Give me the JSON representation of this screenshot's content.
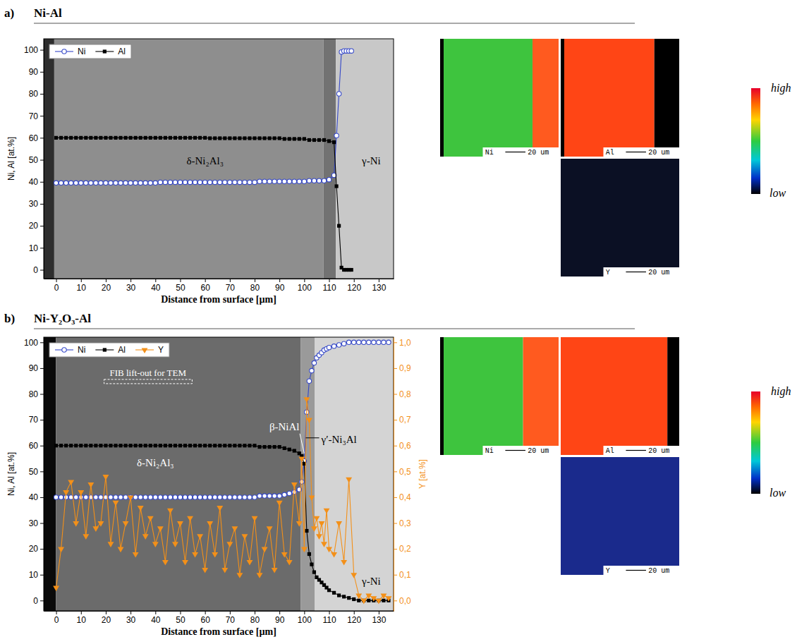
{
  "chart_data": [
    {
      "type": "line",
      "panel_label": "a)",
      "title": "Ni-Al",
      "xlabel": "Distance from surface [µm]",
      "ylabel": "Ni, Al [at.%]",
      "xlim": [
        -5,
        136
      ],
      "ylim": [
        -4,
        105
      ],
      "xticks": [
        0,
        10,
        20,
        30,
        40,
        50,
        60,
        70,
        80,
        90,
        100,
        110,
        120,
        130
      ],
      "yticks": [
        0,
        10,
        20,
        30,
        40,
        50,
        60,
        70,
        80,
        90,
        100
      ],
      "legend": "top-left",
      "x": [
        0,
        2,
        4,
        6,
        8,
        10,
        12,
        14,
        16,
        18,
        20,
        22,
        24,
        26,
        28,
        30,
        32,
        34,
        36,
        38,
        40,
        42,
        44,
        46,
        48,
        50,
        52,
        54,
        56,
        58,
        60,
        62,
        64,
        66,
        68,
        70,
        72,
        74,
        76,
        78,
        80,
        82,
        84,
        86,
        88,
        90,
        92,
        94,
        96,
        98,
        100,
        102,
        104,
        106,
        108,
        110,
        112,
        113,
        114,
        115,
        116,
        117,
        118,
        119
      ],
      "series": [
        {
          "name": "Ni",
          "color": "#3548c8",
          "marker": "circle",
          "values": [
            39.5,
            39.5,
            39.5,
            39.5,
            39.5,
            39.5,
            39.5,
            39.5,
            39.5,
            39.5,
            39.5,
            39.5,
            39.5,
            39.5,
            39.5,
            39.5,
            39.5,
            39.5,
            39.5,
            39.5,
            39.5,
            39.8,
            39.8,
            39.8,
            39.8,
            39.8,
            39.8,
            39.8,
            39.8,
            39.8,
            39.8,
            39.8,
            39.8,
            39.8,
            39.8,
            39.8,
            39.8,
            39.8,
            39.8,
            39.8,
            39.8,
            40.2,
            40.2,
            40.2,
            40.2,
            40.2,
            40.2,
            40.2,
            40.2,
            40.2,
            40.2,
            40.5,
            40.5,
            40.5,
            40.5,
            41,
            43,
            61,
            80,
            99,
            99.5,
            99.5,
            99.5,
            99.5
          ]
        },
        {
          "name": "Al",
          "color": "#000000",
          "marker": "square",
          "values": [
            60,
            60,
            60,
            60,
            60,
            60,
            60,
            60,
            60,
            60,
            60,
            60,
            60,
            60,
            60,
            60,
            60,
            60,
            60,
            60,
            60,
            60,
            60,
            60,
            60,
            60,
            60,
            60,
            60,
            60,
            60,
            59.8,
            59.8,
            59.8,
            59.8,
            59.8,
            59.8,
            59.8,
            59.8,
            59.8,
            59.8,
            59.8,
            59.8,
            59.8,
            59.8,
            59.8,
            59.5,
            59.5,
            59.5,
            59.5,
            59.5,
            59,
            59,
            59,
            59,
            58.5,
            58,
            38,
            20,
            1,
            0,
            0,
            0,
            0
          ]
        }
      ],
      "annotations": [
        {
          "text": "δ-Ni₂Al₃",
          "x": 60,
          "y": 48,
          "color": "#000000"
        },
        {
          "text": "γ-Ni",
          "x": 127,
          "y": 48,
          "color": "#000000"
        }
      ],
      "maps": [
        {
          "element": "Ni",
          "scale_bar": "20 um"
        },
        {
          "element": "Al",
          "scale_bar": "20 um"
        },
        {
          "element": "Y",
          "scale_bar": "20 um"
        }
      ],
      "color_scale": {
        "high": "high",
        "low": "low"
      }
    },
    {
      "type": "line",
      "panel_label": "b)",
      "title": "Ni-Y₂O₃-Al",
      "xlabel": "Distance from surface [µm]",
      "ylabel": "Ni, Al [at.%]",
      "y2label": "Y [at.%]",
      "xlim": [
        -5,
        136
      ],
      "ylim": [
        -4,
        102
      ],
      "y2lim": [
        -0.04,
        1.02
      ],
      "xticks": [
        0,
        10,
        20,
        30,
        40,
        50,
        60,
        70,
        80,
        90,
        100,
        110,
        120,
        130
      ],
      "yticks": [
        0,
        10,
        20,
        30,
        40,
        50,
        60,
        70,
        80,
        90,
        100
      ],
      "y2ticks": [
        {
          "value": 0,
          "label": "0,0"
        },
        {
          "value": 0.1,
          "label": "0,1"
        },
        {
          "value": 0.2,
          "label": "0,2"
        },
        {
          "value": 0.3,
          "label": "0,3"
        },
        {
          "value": 0.4,
          "label": "0,4"
        },
        {
          "value": 0.5,
          "label": "0,5"
        },
        {
          "value": 0.6,
          "label": "0,6"
        },
        {
          "value": 0.7,
          "label": "0,7"
        },
        {
          "value": 0.8,
          "label": "0,8"
        },
        {
          "value": 0.9,
          "label": "0,9"
        },
        {
          "value": 1,
          "label": "1,0"
        }
      ],
      "legend": "top-left",
      "x": [
        0,
        2,
        4,
        6,
        8,
        10,
        12,
        14,
        16,
        18,
        20,
        22,
        24,
        26,
        28,
        30,
        32,
        34,
        36,
        38,
        40,
        42,
        44,
        46,
        48,
        50,
        52,
        54,
        56,
        58,
        60,
        62,
        64,
        66,
        68,
        70,
        72,
        74,
        76,
        78,
        80,
        82,
        84,
        86,
        88,
        90,
        92,
        94,
        96,
        98,
        99,
        100,
        101,
        102,
        103,
        104,
        105,
        106,
        107,
        108,
        109,
        110,
        112,
        114,
        116,
        118,
        120,
        122,
        124,
        126,
        128,
        130,
        132,
        134
      ],
      "series": [
        {
          "name": "Ni",
          "color": "#3548c8",
          "marker": "circle",
          "values": [
            40,
            40,
            40,
            40,
            40,
            40,
            40,
            40,
            40,
            40,
            40,
            40,
            40,
            40,
            40,
            40,
            40,
            40,
            40,
            40,
            40,
            40,
            40,
            40,
            40,
            40,
            40,
            40,
            40,
            40,
            40,
            40,
            40,
            40,
            40,
            40,
            40,
            40,
            40,
            40,
            40,
            40.5,
            40.5,
            40.5,
            40.5,
            40.5,
            41,
            41.5,
            42,
            43,
            46,
            54,
            73,
            85,
            89,
            92,
            94,
            95,
            96,
            97,
            97.5,
            98,
            98.5,
            99,
            99.5,
            100,
            100,
            100,
            100,
            100,
            100,
            100,
            100,
            100
          ]
        },
        {
          "name": "Al",
          "color": "#000000",
          "marker": "square",
          "values": [
            60,
            60,
            60,
            60,
            60,
            60,
            60,
            60,
            60,
            60,
            60,
            60,
            60,
            60,
            60,
            60,
            60,
            60,
            60,
            60,
            60,
            60,
            60,
            60,
            60,
            60,
            60,
            60,
            60,
            60,
            60,
            60,
            60,
            60,
            60,
            60,
            60,
            60,
            60,
            60,
            60,
            59.5,
            59.5,
            59.5,
            59.5,
            59.5,
            59,
            58.5,
            58,
            57,
            56,
            53,
            27,
            18,
            14,
            11,
            9,
            8,
            7,
            6,
            5,
            4,
            3,
            2,
            1.5,
            1,
            0.5,
            0,
            0,
            0,
            0,
            0,
            0,
            0
          ]
        },
        {
          "name": "Y",
          "color": "#f39019",
          "marker": "triangle-down",
          "axis": "y2",
          "values": [
            0.05,
            0.2,
            0.42,
            0.46,
            0.3,
            0.42,
            0.25,
            0.45,
            0.28,
            0.3,
            0.48,
            0.22,
            0.38,
            0.2,
            0.3,
            0.4,
            0.18,
            0.36,
            0.25,
            0.32,
            0.22,
            0.28,
            0.15,
            0.35,
            0.22,
            0.3,
            0.15,
            0.32,
            0.18,
            0.25,
            0.12,
            0.3,
            0.18,
            0.36,
            0.12,
            0.22,
            0.28,
            0.1,
            0.25,
            0.15,
            0.32,
            0.1,
            0.2,
            0.28,
            0.12,
            0.38,
            0.18,
            0.15,
            0.45,
            0.3,
            0.55,
            0.2,
            0.78,
            0.7,
            0.4,
            0.28,
            0.32,
            0.25,
            0.3,
            0.22,
            0.35,
            0.2,
            0.18,
            0.3,
            0.15,
            0.47,
            0.1,
            0.02,
            0,
            0.02,
            0.01,
            0,
            0.02,
            0.01
          ]
        }
      ],
      "annotations": [
        {
          "text": "FIB lift-out for TEM",
          "x": 37,
          "y": 87,
          "color": "#ffffff",
          "line_style": "dashed"
        },
        {
          "text": "β-NiAl",
          "x": 92,
          "y": 66,
          "color": "#ffffff",
          "target_x": 100,
          "target_y": 57
        },
        {
          "text": "γ′-Ni₃Al",
          "x": 114,
          "y": 61,
          "color": "#000000",
          "target_x": 100.6,
          "target_y": 63
        },
        {
          "text": "δ-Ni₂Al₃",
          "x": 40,
          "y": 52,
          "color": "#ffffff"
        },
        {
          "text": "γ-Ni",
          "x": 127,
          "y": 6,
          "color": "#000000"
        }
      ],
      "maps": [
        {
          "element": "Ni",
          "scale_bar": "20 um"
        },
        {
          "element": "Al",
          "scale_bar": "20 um"
        },
        {
          "element": "Y",
          "scale_bar": "20 um"
        }
      ],
      "color_scale": {
        "high": "high",
        "low": "low"
      }
    }
  ]
}
